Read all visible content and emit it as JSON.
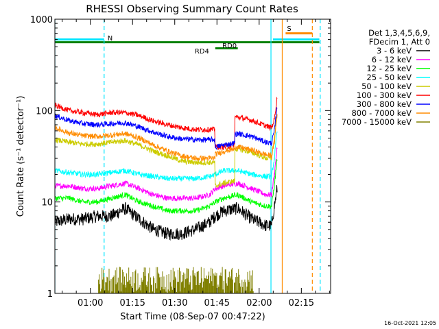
{
  "chart_data": {
    "type": "line",
    "title": "RHESSI Observing Summary Count Rates",
    "xlabel": "Start Time (08-Sep-07 00:47:22)",
    "ylabel": "Count Rate (s⁻¹ detector⁻¹)",
    "yscale": "log",
    "ylim": [
      1,
      1000
    ],
    "xlim_minutes": [
      0,
      98
    ],
    "x_ticks": [
      "01:00",
      "01:15",
      "01:30",
      "01:45",
      "02:00",
      "02:15"
    ],
    "x_tick_minutes": [
      12.6,
      27.6,
      42.6,
      57.6,
      72.6,
      87.6
    ],
    "y_ticks": [
      "1",
      "10",
      "100",
      "1000"
    ],
    "y_tick_values": [
      1,
      10,
      100,
      1000
    ],
    "legend_header": [
      "Det 1,3,4,5,6,9,",
      "FDecim 1, Att 0"
    ],
    "legend_position": "right",
    "footer_date": "16-Oct-2021 12:05",
    "annotations": [
      {
        "label": "N",
        "color": "#00e5ff",
        "x_start": 0,
        "x_end": 17.5,
        "y": 630
      },
      {
        "label": "S",
        "color": "#ff8c00",
        "x_start": 82,
        "x_end": 91.5,
        "y": 800
      },
      {
        "label": "RD0",
        "color": "#008000",
        "x_start": 0,
        "x_end": 94,
        "y": 520
      },
      {
        "label": "RD4",
        "color": "#008000",
        "x_start": 57,
        "x_end": 65,
        "y": 450
      }
    ],
    "bars": [
      {
        "x_start": 0,
        "x_end": 17.5,
        "y": 600,
        "color": "#00e5ff"
      },
      {
        "x_start": 77.5,
        "x_end": 94,
        "y": 600,
        "color": "#00e5ff"
      },
      {
        "x_start": 82,
        "x_end": 91.5,
        "y": 700,
        "color": "#ff8c00"
      },
      {
        "x_start": 0,
        "x_end": 94,
        "y": 560,
        "color": "#008000"
      },
      {
        "x_start": 57,
        "x_end": 65,
        "y": 480,
        "color": "#008000"
      }
    ],
    "vlines": [
      {
        "x": 0,
        "color": "#00e5ff",
        "style": "solid"
      },
      {
        "x": 17.5,
        "color": "#00e5ff",
        "style": "dashed"
      },
      {
        "x": 76.8,
        "color": "#00e5ff",
        "style": "solid"
      },
      {
        "x": 80.8,
        "color": "#ff8c00",
        "style": "solid"
      },
      {
        "x": 91.5,
        "color": "#ff8c00",
        "style": "dashed"
      },
      {
        "x": 94.3,
        "color": "#00e5ff",
        "style": "dashed"
      }
    ],
    "series": [
      {
        "name": "3 - 6 keV",
        "color": "#000000",
        "x": [
          0,
          5,
          10,
          15,
          20,
          25,
          30,
          35,
          40,
          45,
          50,
          55,
          57,
          60,
          65,
          70,
          75,
          77,
          78,
          79
        ],
        "y": [
          6.0,
          6.5,
          6.5,
          7.0,
          7.0,
          8.5,
          6.5,
          5.0,
          4.5,
          4.5,
          5.0,
          6.0,
          7.0,
          8.0,
          8.5,
          6.5,
          5.5,
          5.5,
          9.0,
          14.0
        ]
      },
      {
        "name": "6 - 12 keV",
        "color": "#ff00ff",
        "x": [
          0,
          5,
          10,
          15,
          20,
          25,
          30,
          35,
          40,
          45,
          50,
          55,
          57,
          60,
          65,
          70,
          75,
          77,
          78,
          79
        ],
        "y": [
          15,
          15,
          14,
          14,
          15,
          16,
          14,
          12,
          11,
          11,
          11,
          12,
          14,
          15,
          16,
          14,
          12,
          12,
          20,
          40
        ]
      },
      {
        "name": "12 - 25 keV",
        "color": "#00ff00",
        "x": [
          0,
          5,
          10,
          15,
          20,
          25,
          30,
          35,
          40,
          45,
          50,
          55,
          57,
          60,
          65,
          70,
          75,
          77,
          78,
          79
        ],
        "y": [
          11,
          11,
          10,
          10,
          11,
          12,
          10,
          9,
          8,
          8,
          8,
          9,
          10,
          11,
          12,
          10,
          9,
          9,
          15,
          30
        ]
      },
      {
        "name": "25 - 50 keV",
        "color": "#00ffff",
        "x": [
          0,
          5,
          10,
          15,
          20,
          25,
          30,
          35,
          40,
          45,
          50,
          55,
          57,
          60,
          65,
          70,
          75,
          77,
          78,
          79
        ],
        "y": [
          22,
          21,
          20,
          20,
          21,
          22,
          20,
          19,
          18,
          18,
          18,
          19,
          20,
          22,
          22,
          20,
          19,
          19,
          30,
          60
        ]
      },
      {
        "name": "50 - 100 keV",
        "color": "#cccc00",
        "x": [
          0,
          5,
          10,
          15,
          20,
          25,
          30,
          35,
          40,
          45,
          50,
          55,
          56.8,
          57,
          60,
          63.9,
          64,
          65,
          70,
          75,
          77,
          78,
          79
        ],
        "y": [
          48,
          45,
          43,
          43,
          45,
          47,
          42,
          36,
          32,
          28,
          27,
          27,
          27,
          15,
          16,
          17,
          38,
          38,
          35,
          30,
          30,
          50,
          90
        ]
      },
      {
        "name": "100 - 300 keV",
        "color": "#ff0000",
        "x": [
          0,
          5,
          10,
          15,
          20,
          25,
          30,
          35,
          40,
          45,
          50,
          55,
          56.8,
          57,
          60,
          63.9,
          64,
          65,
          70,
          75,
          77,
          78,
          79
        ],
        "y": [
          115,
          100,
          95,
          90,
          95,
          95,
          88,
          77,
          70,
          65,
          62,
          62,
          62,
          40,
          40,
          42,
          85,
          85,
          78,
          68,
          65,
          80,
          140
        ]
      },
      {
        "name": "300 - 800 keV",
        "color": "#0000ff",
        "x": [
          0,
          5,
          10,
          15,
          20,
          25,
          30,
          35,
          40,
          45,
          50,
          55,
          56.8,
          57,
          60,
          63.9,
          64,
          65,
          70,
          75,
          77,
          78,
          79
        ],
        "y": [
          88,
          78,
          72,
          70,
          72,
          74,
          66,
          58,
          52,
          49,
          48,
          48,
          48,
          40,
          42,
          44,
          55,
          56,
          52,
          45,
          44,
          60,
          110
        ]
      },
      {
        "name": "800 - 7000 keV",
        "color": "#ff8c00",
        "x": [
          0,
          5,
          10,
          15,
          20,
          25,
          30,
          35,
          40,
          45,
          50,
          55,
          56.8,
          57,
          60,
          63.9,
          64,
          65,
          70,
          75,
          77,
          78,
          79
        ],
        "y": [
          65,
          57,
          53,
          52,
          54,
          56,
          50,
          42,
          36,
          32,
          30,
          30,
          30,
          33,
          36,
          38,
          40,
          40,
          37,
          33,
          32,
          45,
          90
        ]
      },
      {
        "name": "7000 - 15000 keV",
        "color": "#808000",
        "x": [
          15.5,
          17.5,
          20,
          22.5,
          25,
          27,
          56.5,
          57.5,
          60,
          62.5,
          65,
          67.5,
          70.5
        ],
        "y": [
          1.0,
          1.9,
          1.0,
          1.9,
          1.0,
          1.9,
          1.0,
          1.9,
          1.0,
          1.9,
          1.0,
          1.9,
          1.0
        ]
      }
    ]
  }
}
